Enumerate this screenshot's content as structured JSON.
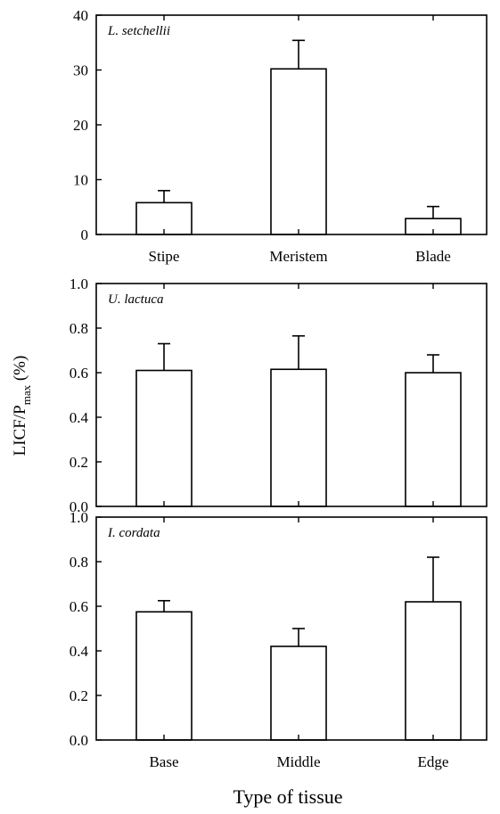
{
  "figure": {
    "ylabel_main": "LICF/P",
    "ylabel_sub": "max",
    "ylabel_unit": " (%)",
    "xlabel": "Type of tissue"
  },
  "chart_data": [
    {
      "type": "bar",
      "species": "L. setchellii",
      "categories": [
        "Stipe",
        "Meristem",
        "Blade"
      ],
      "values": [
        5.8,
        30.2,
        2.9
      ],
      "errors": [
        2.2,
        5.2,
        2.2
      ],
      "ylim": [
        0,
        40
      ],
      "yticks": [
        0,
        10,
        20,
        30,
        40
      ],
      "ytick_labels": [
        "0",
        "10",
        "20",
        "30",
        "40"
      ],
      "show_category_labels": true
    },
    {
      "type": "bar",
      "species": "U. lactuca",
      "categories": [
        "",
        "",
        ""
      ],
      "values": [
        0.61,
        0.615,
        0.6
      ],
      "errors": [
        0.12,
        0.15,
        0.08
      ],
      "ylim": [
        0,
        1.0
      ],
      "yticks": [
        0,
        0.2,
        0.4,
        0.6,
        0.8,
        1.0
      ],
      "ytick_labels": [
        "0.0",
        "0.2",
        "0.4",
        "0.6",
        "0.8",
        "1.0"
      ],
      "show_category_labels": false
    },
    {
      "type": "bar",
      "species": "I. cordata",
      "categories": [
        "Base",
        "Middle",
        "Edge"
      ],
      "values": [
        0.575,
        0.42,
        0.62
      ],
      "errors": [
        0.05,
        0.08,
        0.2
      ],
      "ylim": [
        0,
        1.0
      ],
      "yticks": [
        0,
        0.2,
        0.4,
        0.6,
        0.8,
        1.0
      ],
      "ytick_labels": [
        "0.0",
        "0.2",
        "0.4",
        "0.6",
        "0.8",
        "1.0"
      ],
      "show_category_labels": true
    }
  ]
}
